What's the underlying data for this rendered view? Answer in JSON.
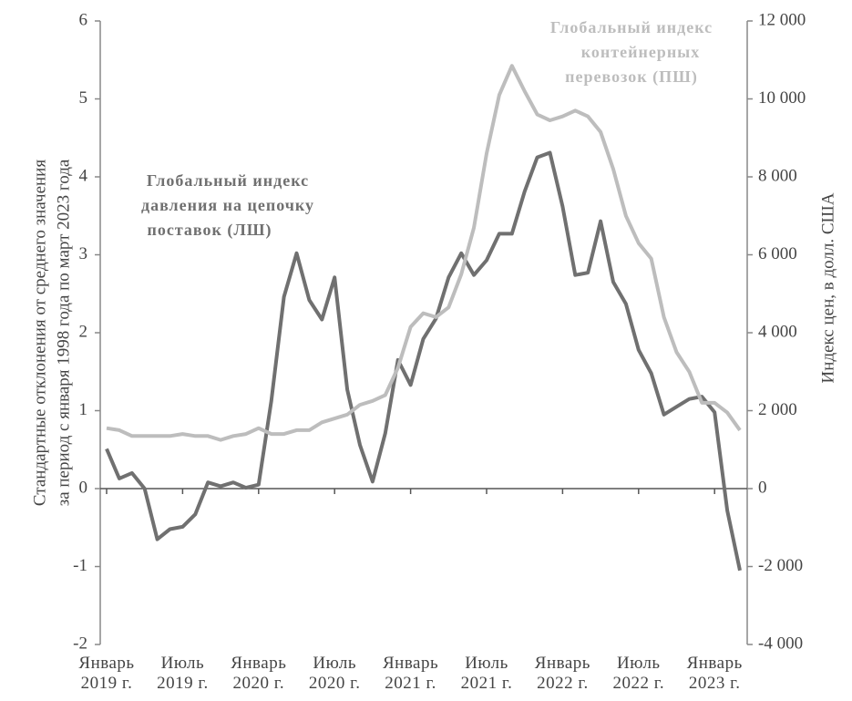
{
  "chart_data": {
    "type": "line",
    "categories": [
      "Январь 2019 г.",
      null,
      null,
      null,
      null,
      null,
      "Июль 2019 г.",
      null,
      null,
      null,
      null,
      null,
      "Январь 2020 г.",
      null,
      null,
      null,
      null,
      null,
      "Июль 2020 г.",
      null,
      null,
      null,
      null,
      null,
      "Январь 2021 г.",
      null,
      null,
      null,
      null,
      null,
      "Июль 2021 г.",
      null,
      null,
      null,
      null,
      null,
      "Январь 2022 г.",
      null,
      null,
      null,
      null,
      null,
      "Июль 2022 г.",
      null,
      null,
      null,
      null,
      null,
      "Январь 2023 г.",
      null,
      null
    ],
    "ylabel": [
      "Стандартные отклонения от среднего значения",
      "за период с января 1998 года по март 2023 года"
    ],
    "y2label": "Индекс цен, в долл. США",
    "ylim": [
      -2,
      6
    ],
    "yticks": [
      -2,
      -1,
      0,
      1,
      2,
      3,
      4,
      5,
      6
    ],
    "y2lim": [
      -4000,
      12000
    ],
    "y2ticks": [
      {
        "value": -4000,
        "label": "-4 000"
      },
      {
        "value": -2000,
        "label": "-2 000"
      },
      0,
      {
        "value": 2000,
        "label": "2 000"
      },
      {
        "value": 4000,
        "label": "4 000"
      },
      {
        "value": 6000,
        "label": "6 000"
      },
      {
        "value": 8000,
        "label": "8 000"
      },
      {
        "value": 10000,
        "label": "10 000"
      },
      {
        "value": 12000,
        "label": "12 000"
      }
    ],
    "series": [
      {
        "label": [
          "Глобальный индекс",
          "давления на цепочку",
          "поставок (ЛШ)"
        ],
        "color": "#707070",
        "axis": "y",
        "values": [
          0.51,
          0.13,
          0.2,
          0.0,
          -0.65,
          -0.52,
          -0.49,
          -0.33,
          0.08,
          0.03,
          0.08,
          0.01,
          0.05,
          1.12,
          2.46,
          3.02,
          2.42,
          2.17,
          2.71,
          1.27,
          0.56,
          0.09,
          0.71,
          1.65,
          1.33,
          1.92,
          2.18,
          2.71,
          3.02,
          2.74,
          2.93,
          3.27,
          3.27,
          3.81,
          4.25,
          4.31,
          3.62,
          2.74,
          2.77,
          3.43,
          2.65,
          2.37,
          1.78,
          1.48,
          0.95,
          1.05,
          1.15,
          1.18,
          0.98,
          -0.28,
          -1.05
        ]
      },
      {
        "label": [
          "Глобальный индекс",
          "контейнерных",
          "перевозок (ПШ)"
        ],
        "color": "#bdbdbd",
        "axis": "y2",
        "values": [
          1550,
          1500,
          1350,
          1350,
          1350,
          1350,
          1400,
          1350,
          1350,
          1250,
          1350,
          1400,
          1550,
          1400,
          1400,
          1500,
          1500,
          1700,
          1800,
          1900,
          2150,
          2250,
          2400,
          3100,
          4150,
          4500,
          4400,
          4650,
          5500,
          6700,
          8600,
          10100,
          10850,
          10200,
          9600,
          9450,
          9550,
          9700,
          9550,
          9150,
          8200,
          7000,
          6300,
          5900,
          4400,
          3500,
          3000,
          2200,
          2200,
          1950,
          1500
        ]
      }
    ]
  }
}
